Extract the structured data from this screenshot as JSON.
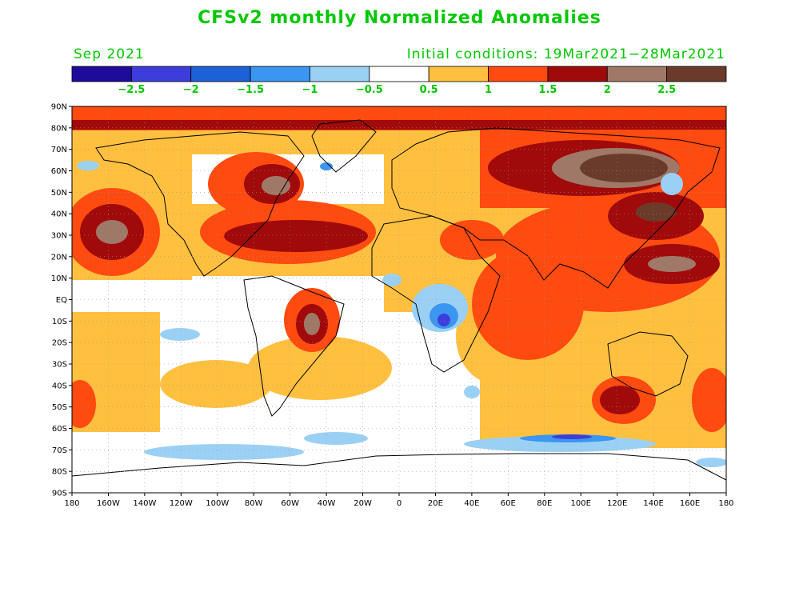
{
  "title": "CFSv2 monthly Normalized Anomalies",
  "month": "Sep 2021",
  "initial_conditions": "Initial conditions: 19Mar2021−28Mar2021",
  "colorbar": {
    "colors": [
      "#1e0b9c",
      "#3d3ddb",
      "#1c62d6",
      "#3a96f0",
      "#9bd0f5",
      "#ffffff",
      "#ffc040",
      "#ff4a10",
      "#a00a0a",
      "#a07868",
      "#6a3a2a"
    ],
    "labels": [
      "−2.5",
      "−2",
      "−1.5",
      "−1",
      "−0.5",
      "0.5",
      "1",
      "1.5",
      "2",
      "2.5"
    ]
  },
  "lat_labels": [
    "90N",
    "80N",
    "70N",
    "60N",
    "50N",
    "40N",
    "30N",
    "20N",
    "10N",
    "EQ",
    "10S",
    "20S",
    "30S",
    "40S",
    "50S",
    "60S",
    "70S",
    "80S",
    "90S"
  ],
  "lon_labels": [
    "180",
    "160W",
    "140W",
    "120W",
    "100W",
    "80W",
    "60W",
    "40W",
    "20W",
    "0",
    "20E",
    "40E",
    "60E",
    "80E",
    "100E",
    "120E",
    "140E",
    "160E",
    "180"
  ],
  "colors": {
    "title": "#00c800"
  }
}
